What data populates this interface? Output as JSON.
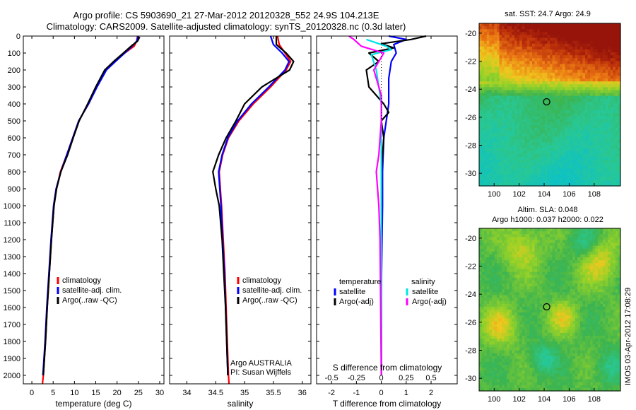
{
  "title_line1": "Argo profile: CS 5903690_21 27-Mar-2012 20120328_552 24.9S 104.213E",
  "title_line2": "Climatology: CARS2009. Satellite-adjusted climatology: synTS_20120328.nc (0.3d later)",
  "colors": {
    "climatology": "#ff0000",
    "satellite": "#0000ff",
    "argo": "#000000",
    "salinity_satellite": "#00e5e5",
    "salinity_argo": "#ff00ff"
  },
  "chart_data": [
    {
      "type": "line",
      "id": "temperature",
      "xlabel": "temperature (deg C)",
      "xlim": [
        -2,
        31
      ],
      "x_ticks": [
        0,
        5,
        10,
        15,
        20,
        25,
        30
      ],
      "ylim": [
        2050,
        0
      ],
      "y_ticks": [
        0,
        100,
        200,
        300,
        400,
        500,
        600,
        700,
        800,
        900,
        1000,
        1100,
        1200,
        1300,
        1400,
        1500,
        1600,
        1700,
        1800,
        1900,
        2000
      ],
      "legend": [
        "climatology",
        "satellite-adj. clim.",
        "Argo(..raw -QC)"
      ],
      "series": [
        {
          "name": "climatology",
          "color": "#ff0000",
          "points": [
            [
              24.8,
              0
            ],
            [
              24.6,
              30
            ],
            [
              24.0,
              60
            ],
            [
              21.8,
              100
            ],
            [
              19.5,
              150
            ],
            [
              17.4,
              200
            ],
            [
              15.2,
              300
            ],
            [
              13.3,
              400
            ],
            [
              11.0,
              500
            ],
            [
              9.6,
              600
            ],
            [
              8.2,
              700
            ],
            [
              6.7,
              800
            ],
            [
              5.8,
              900
            ],
            [
              5.2,
              1000
            ],
            [
              4.6,
              1200
            ],
            [
              4.1,
              1400
            ],
            [
              3.6,
              1600
            ],
            [
              3.2,
              1800
            ],
            [
              2.7,
              2000
            ],
            [
              2.5,
              2050
            ]
          ]
        },
        {
          "name": "satellite-adj. clim.",
          "color": "#0000ff",
          "points": [
            [
              25.0,
              0
            ],
            [
              24.6,
              30
            ],
            [
              23.5,
              60
            ],
            [
              21.8,
              100
            ],
            [
              19.6,
              150
            ],
            [
              17.5,
              200
            ],
            [
              15.3,
              300
            ],
            [
              13.3,
              400
            ],
            [
              11.0,
              500
            ],
            [
              9.6,
              600
            ],
            [
              8.2,
              700
            ],
            [
              6.8,
              800
            ],
            [
              5.7,
              900
            ],
            [
              5.1,
              1000
            ],
            [
              4.5,
              1200
            ],
            [
              4.0,
              1400
            ],
            [
              3.5,
              1600
            ],
            [
              3.1,
              1800
            ],
            [
              2.6,
              2000
            ]
          ]
        },
        {
          "name": "Argo(..raw -QC)",
          "color": "#000000",
          "points": [
            [
              25.3,
              5
            ],
            [
              24.8,
              30
            ],
            [
              23.5,
              55
            ],
            [
              21.5,
              100
            ],
            [
              19.2,
              150
            ],
            [
              17.1,
              200
            ],
            [
              15.0,
              300
            ],
            [
              13.1,
              400
            ],
            [
              11.1,
              500
            ],
            [
              9.7,
              600
            ],
            [
              8.4,
              700
            ],
            [
              6.8,
              800
            ],
            [
              5.8,
              900
            ],
            [
              5.2,
              1000
            ],
            [
              4.6,
              1200
            ],
            [
              4.1,
              1400
            ],
            [
              3.6,
              1600
            ],
            [
              3.2,
              1800
            ],
            [
              2.7,
              2000
            ]
          ]
        }
      ]
    },
    {
      "type": "line",
      "id": "salinity",
      "xlabel": "salinity",
      "xlim": [
        33.7,
        36.15
      ],
      "x_ticks": [
        34,
        34.5,
        35,
        35.5,
        36
      ],
      "ylim": [
        2050,
        0
      ],
      "legend": [
        "climatology",
        "satellite-adj. clim.",
        "Argo(..raw -QC)"
      ],
      "annotation": [
        "Argo AUSTRALIA",
        "PI: Susan Wijffels"
      ],
      "series": [
        {
          "name": "climatology",
          "color": "#ff0000",
          "points": [
            [
              35.57,
              0
            ],
            [
              35.6,
              50
            ],
            [
              35.7,
              100
            ],
            [
              35.8,
              150
            ],
            [
              35.72,
              200
            ],
            [
              35.45,
              300
            ],
            [
              35.15,
              400
            ],
            [
              34.9,
              500
            ],
            [
              34.72,
              600
            ],
            [
              34.62,
              700
            ],
            [
              34.56,
              800
            ],
            [
              34.58,
              900
            ],
            [
              34.6,
              1000
            ],
            [
              34.63,
              1200
            ],
            [
              34.66,
              1400
            ],
            [
              34.68,
              1600
            ],
            [
              34.7,
              1800
            ],
            [
              34.72,
              2000
            ],
            [
              34.73,
              2050
            ]
          ]
        },
        {
          "name": "satellite-adj. clim.",
          "color": "#0000ff",
          "points": [
            [
              35.45,
              0
            ],
            [
              35.5,
              50
            ],
            [
              35.65,
              100
            ],
            [
              35.77,
              150
            ],
            [
              35.7,
              200
            ],
            [
              35.42,
              300
            ],
            [
              35.12,
              400
            ],
            [
              34.88,
              500
            ],
            [
              34.71,
              600
            ],
            [
              34.61,
              700
            ],
            [
              34.55,
              800
            ],
            [
              34.57,
              900
            ],
            [
              34.59,
              1000
            ],
            [
              34.62,
              1200
            ],
            [
              34.65,
              1400
            ],
            [
              34.67,
              1600
            ],
            [
              34.69,
              1800
            ],
            [
              34.71,
              2000
            ]
          ]
        },
        {
          "name": "Argo(..raw -QC)",
          "color": "#000000",
          "points": [
            [
              35.55,
              0
            ],
            [
              35.55,
              50
            ],
            [
              35.72,
              100
            ],
            [
              35.85,
              150
            ],
            [
              35.78,
              200
            ],
            [
              35.3,
              300
            ],
            [
              35.0,
              400
            ],
            [
              34.85,
              500
            ],
            [
              34.68,
              600
            ],
            [
              34.55,
              700
            ],
            [
              34.45,
              800
            ],
            [
              34.5,
              900
            ],
            [
              34.56,
              1000
            ],
            [
              34.61,
              1200
            ],
            [
              34.64,
              1400
            ],
            [
              34.67,
              1600
            ],
            [
              34.69,
              1800
            ],
            [
              34.71,
              2000
            ]
          ]
        }
      ]
    },
    {
      "type": "line",
      "id": "difference",
      "xlabel": "T difference from climatology",
      "xlabel_top": "S difference from climatology",
      "xlim": [
        -2.6,
        3.05
      ],
      "x_ticks": [
        -2,
        -1,
        0,
        1,
        2
      ],
      "x_ticks_top": [
        -0.5,
        -0.25,
        0,
        0.25,
        0.5
      ],
      "x_tick_labels_top": [
        "-0.5",
        "-0.25",
        "0",
        "0.25",
        "0.5"
      ],
      "ylim": [
        2050,
        0
      ],
      "legend_headers": [
        "temperature",
        "salinity"
      ],
      "legend_temperature": [
        "satellite",
        "Argo(-adj)"
      ],
      "legend_salinity": [
        "satellite",
        "Argo(-adj)"
      ],
      "series": [
        {
          "name": "satellite",
          "group": "temperature",
          "color": "#0000ff",
          "points": [
            [
              0.3,
              0
            ],
            [
              1.0,
              20
            ],
            [
              0.5,
              50
            ],
            [
              0.6,
              100
            ],
            [
              0.4,
              150
            ],
            [
              0.3,
              250
            ],
            [
              0.3,
              400
            ],
            [
              0.2,
              500
            ],
            [
              0.1,
              600
            ],
            [
              0.05,
              800
            ],
            [
              0.05,
              1000
            ],
            [
              0.0,
              1500
            ],
            [
              0.0,
              2000
            ]
          ]
        },
        {
          "name": "Argo(-adj)",
          "group": "temperature",
          "color": "#000000",
          "points": [
            [
              1.8,
              0
            ],
            [
              1.2,
              20
            ],
            [
              0.0,
              45
            ],
            [
              0.5,
              70
            ],
            [
              -0.5,
              100
            ],
            [
              -0.1,
              150
            ],
            [
              -0.6,
              200
            ],
            [
              -0.5,
              300
            ],
            [
              0.1,
              400
            ],
            [
              0.3,
              450
            ],
            [
              0.0,
              500
            ],
            [
              0.1,
              600
            ],
            [
              0.05,
              700
            ],
            [
              0.0,
              800
            ],
            [
              0.0,
              900
            ],
            [
              0.0,
              1000
            ],
            [
              0.0,
              1500
            ],
            [
              0.0,
              2000
            ]
          ]
        },
        {
          "name": "satellite",
          "group": "salinity",
          "color": "#00e5e5",
          "points": [
            [
              -0.6,
              20
            ],
            [
              0.2,
              60
            ],
            [
              0.4,
              80
            ],
            [
              -0.4,
              110
            ],
            [
              -0.2,
              200
            ],
            [
              0.0,
              400
            ],
            [
              0.0,
              700
            ],
            [
              0.0,
              1000
            ],
            [
              0.0,
              1500
            ],
            [
              0.0,
              2000
            ]
          ]
        },
        {
          "name": "Argo(-adj)",
          "group": "salinity",
          "color": "#ff00ff",
          "points": [
            [
              -1.3,
              0
            ],
            [
              -1.1,
              20
            ],
            [
              -0.8,
              60
            ],
            [
              0.1,
              100
            ],
            [
              -0.3,
              200
            ],
            [
              0.0,
              350
            ],
            [
              0.0,
              500
            ],
            [
              -0.1,
              700
            ],
            [
              -0.2,
              800
            ],
            [
              -0.1,
              1000
            ],
            [
              -0.05,
              1200
            ],
            [
              0.0,
              2000
            ]
          ]
        }
      ]
    },
    {
      "type": "heatmap",
      "id": "sst_map",
      "title": "sat. SST: 24.7  Argo: 24.9",
      "xlim": [
        98.8,
        110.1
      ],
      "ylim": [
        -30.9,
        -19.3
      ],
      "x_ticks": [
        100,
        102,
        104,
        106,
        108
      ],
      "y_ticks": [
        -20,
        -22,
        -24,
        -26,
        -28,
        -30
      ],
      "marker": [
        104.2,
        -24.9
      ]
    },
    {
      "type": "heatmap",
      "id": "sla_map",
      "title_lines": [
        "Altim. SLA: 0.048",
        "Argo h1000: 0.037 h2000: 0.022"
      ],
      "xlim": [
        98.8,
        110.1
      ],
      "ylim": [
        -30.9,
        -19.3
      ],
      "x_ticks": [
        100,
        102,
        104,
        106,
        108
      ],
      "y_ticks": [
        -20,
        -22,
        -24,
        -26,
        -28,
        -30
      ],
      "marker": [
        104.2,
        -24.9
      ]
    }
  ],
  "side_note": "IMOS 03-Apr-2012 17:08:29"
}
